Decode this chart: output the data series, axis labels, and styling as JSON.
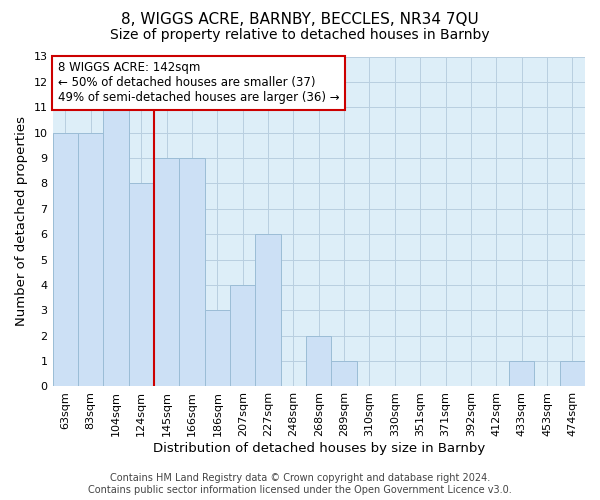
{
  "title": "8, WIGGS ACRE, BARNBY, BECCLES, NR34 7QU",
  "subtitle": "Size of property relative to detached houses in Barnby",
  "xlabel": "Distribution of detached houses by size in Barnby",
  "ylabel": "Number of detached properties",
  "bar_labels": [
    "63sqm",
    "83sqm",
    "104sqm",
    "124sqm",
    "145sqm",
    "166sqm",
    "186sqm",
    "207sqm",
    "227sqm",
    "248sqm",
    "268sqm",
    "289sqm",
    "310sqm",
    "330sqm",
    "351sqm",
    "371sqm",
    "392sqm",
    "412sqm",
    "433sqm",
    "453sqm",
    "474sqm"
  ],
  "bar_values": [
    10,
    10,
    11,
    8,
    9,
    9,
    3,
    4,
    6,
    0,
    2,
    1,
    0,
    0,
    0,
    0,
    0,
    0,
    1,
    0,
    1
  ],
  "bar_color": "#cce0f5",
  "bar_edge_color": "#9bbdd6",
  "grid_color": "#b8cfe0",
  "bg_color": "#ddeef8",
  "vline_color": "#cc0000",
  "annotation_text": "8 WIGGS ACRE: 142sqm\n← 50% of detached houses are smaller (37)\n49% of semi-detached houses are larger (36) →",
  "annotation_box_color": "#ffffff",
  "annotation_box_edge_color": "#cc0000",
  "ylim": [
    0,
    13
  ],
  "yticks": [
    0,
    1,
    2,
    3,
    4,
    5,
    6,
    7,
    8,
    9,
    10,
    11,
    12,
    13
  ],
  "footer_line1": "Contains HM Land Registry data © Crown copyright and database right 2024.",
  "footer_line2": "Contains public sector information licensed under the Open Government Licence v3.0.",
  "title_fontsize": 11,
  "subtitle_fontsize": 10,
  "axis_label_fontsize": 9.5,
  "tick_fontsize": 8,
  "annotation_fontsize": 8.5,
  "footer_fontsize": 7
}
